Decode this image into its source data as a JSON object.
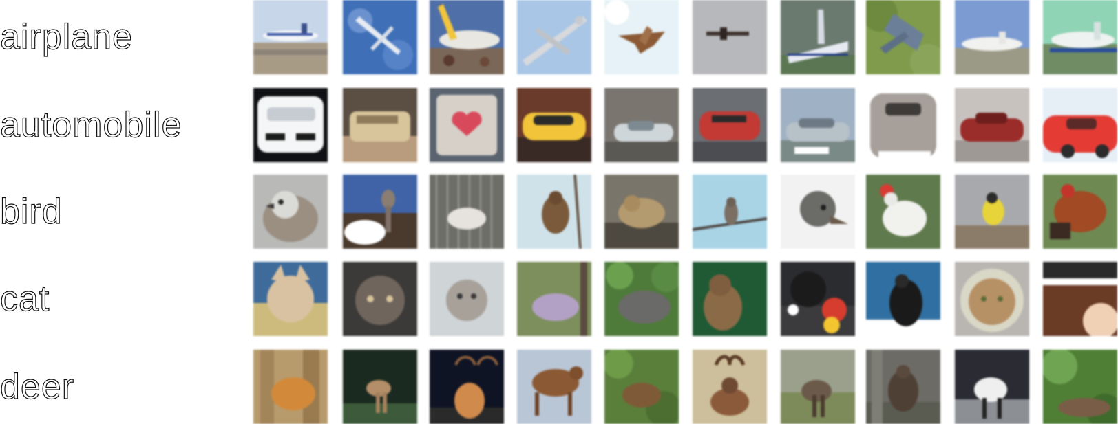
{
  "rows": [
    {
      "label": "airplane"
    },
    {
      "label": "automobile"
    },
    {
      "label": "bird"
    },
    {
      "label": "cat"
    },
    {
      "label": "deer"
    }
  ]
}
